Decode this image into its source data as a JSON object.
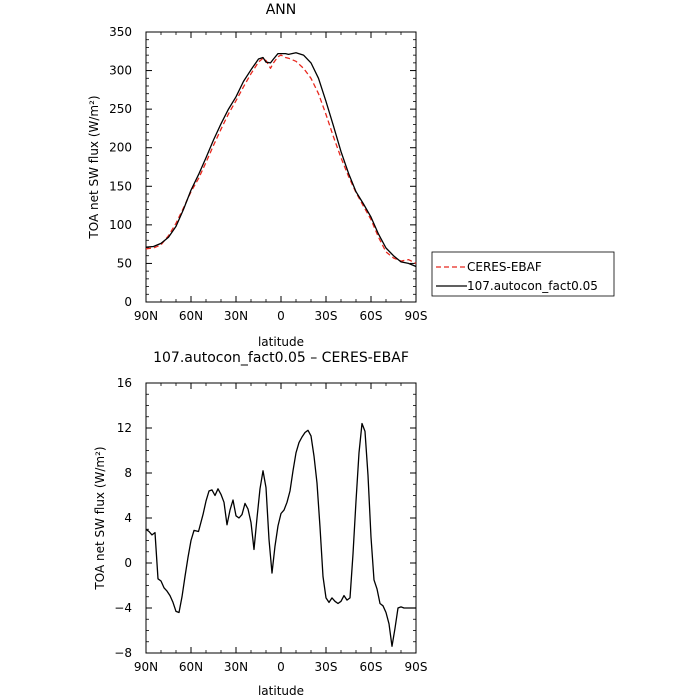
{
  "chart_data": [
    {
      "type": "line",
      "title": "ANN",
      "xlabel": "latitude",
      "ylabel": "TOA net SW flux (W/m²)",
      "x_ticks": [
        -90,
        -60,
        -30,
        0,
        30,
        60,
        90
      ],
      "x_tick_labels": [
        "90N",
        "60N",
        "30N",
        "0",
        "30S",
        "60S",
        "90S"
      ],
      "y_ticks": [
        0,
        50,
        100,
        150,
        200,
        250,
        300,
        350
      ],
      "y_tick_labels": [
        "0",
        "50",
        "100",
        "150",
        "200",
        "250",
        "300",
        "350"
      ],
      "xlim": [
        -90,
        90
      ],
      "ylim": [
        0,
        350
      ],
      "legend_position": "right",
      "series": [
        {
          "name": "CERES-EBAF",
          "color": "#e8281e",
          "dash": "dashed",
          "x": [
            -90,
            -85,
            -80,
            -75,
            -70,
            -65,
            -60,
            -55,
            -50,
            -45,
            -40,
            -35,
            -30,
            -25,
            -20,
            -15,
            -12,
            -10,
            -7,
            -5,
            -2,
            0,
            3,
            5,
            10,
            15,
            20,
            25,
            30,
            35,
            40,
            45,
            50,
            55,
            60,
            65,
            70,
            75,
            80,
            85,
            90
          ],
          "y": [
            69,
            70,
            74,
            86,
            102,
            122,
            143,
            160,
            181,
            203,
            224,
            244,
            261,
            279,
            296,
            311,
            316,
            313,
            303,
            310,
            318,
            320,
            317,
            316,
            312,
            303,
            290,
            270,
            243,
            214,
            187,
            163,
            142,
            124,
            107,
            84,
            65,
            57,
            53,
            55,
            50
          ]
        },
        {
          "name": "107.autocon_fact0.05",
          "color": "#000000",
          "dash": "solid",
          "x": [
            -90,
            -85,
            -80,
            -75,
            -70,
            -65,
            -60,
            -55,
            -50,
            -45,
            -40,
            -35,
            -30,
            -25,
            -20,
            -15,
            -12,
            -10,
            -7,
            -5,
            -2,
            0,
            3,
            5,
            10,
            15,
            20,
            25,
            30,
            35,
            40,
            45,
            50,
            55,
            60,
            65,
            70,
            75,
            80,
            85,
            90
          ],
          "y": [
            71,
            72,
            76,
            84,
            98,
            120,
            145,
            165,
            187,
            210,
            231,
            250,
            266,
            286,
            301,
            315,
            317,
            311,
            310,
            315,
            322,
            322,
            322,
            321,
            323,
            320,
            310,
            290,
            260,
            228,
            195,
            167,
            143,
            127,
            110,
            88,
            70,
            60,
            52,
            50,
            46
          ]
        }
      ]
    },
    {
      "type": "line",
      "title": "107.autocon_fact0.05 – CERES-EBAF",
      "xlabel": "latitude",
      "ylabel": "TOA net SW flux (W/m²)",
      "x_ticks": [
        -90,
        -60,
        -30,
        0,
        30,
        60,
        90
      ],
      "x_tick_labels": [
        "90N",
        "60N",
        "30N",
        "0",
        "30S",
        "60S",
        "90S"
      ],
      "y_ticks": [
        -8,
        -4,
        0,
        4,
        8,
        12,
        16
      ],
      "y_tick_labels": [
        "−8",
        "−4",
        "0",
        "4",
        "8",
        "12",
        "16"
      ],
      "xlim": [
        -90,
        90
      ],
      "ylim": [
        -8,
        16
      ],
      "series": [
        {
          "name": "",
          "color": "#000000",
          "dash": "solid",
          "x": [
            -90,
            -88,
            -86,
            -84,
            -82,
            -80,
            -78,
            -76,
            -74,
            -72,
            -70,
            -68,
            -66,
            -64,
            -62,
            -60,
            -58,
            -55,
            -52,
            -50,
            -48,
            -46,
            -44,
            -42,
            -40,
            -38,
            -36,
            -34,
            -32,
            -30,
            -28,
            -26,
            -24,
            -22,
            -20,
            -18,
            -16,
            -14,
            -12,
            -10,
            -8,
            -6,
            -4,
            -2,
            0,
            2,
            4,
            6,
            8,
            10,
            12,
            14,
            16,
            18,
            20,
            22,
            24,
            26,
            28,
            30,
            32,
            34,
            36,
            38,
            40,
            42,
            44,
            46,
            48,
            50,
            52,
            54,
            56,
            58,
            60,
            62,
            64,
            66,
            68,
            70,
            72,
            74,
            76,
            78,
            80,
            82,
            84,
            86,
            88,
            90
          ],
          "y": [
            3,
            2.8,
            2.5,
            2.7,
            -1.4,
            -1.6,
            -2.2,
            -2.5,
            -2.9,
            -3.5,
            -4.3,
            -4.4,
            -3,
            -1.2,
            0.5,
            2,
            2.9,
            2.8,
            4.3,
            5.5,
            6.4,
            6.5,
            6,
            6.6,
            6.1,
            5.4,
            3.4,
            4.7,
            5.6,
            4.2,
            4,
            4.3,
            5.3,
            4.8,
            3.6,
            1.2,
            4,
            6.6,
            8.2,
            6.7,
            2.1,
            -0.9,
            1.5,
            3.3,
            4.4,
            4.7,
            5.4,
            6.4,
            8.2,
            9.8,
            10.7,
            11.2,
            11.6,
            11.8,
            11.3,
            9.5,
            7.1,
            3.2,
            -1.2,
            -3.1,
            -3.5,
            -3.1,
            -3.4,
            -3.6,
            -3.4,
            -2.9,
            -3.3,
            -3.1,
            0.8,
            5.5,
            9.8,
            12.4,
            11.7,
            7.8,
            2.3,
            -1.5,
            -2.3,
            -3.6,
            -3.8,
            -4.4,
            -5.4,
            -7.4,
            -5.8,
            -4,
            -3.9,
            -4,
            -4,
            -4,
            -4,
            -4
          ]
        }
      ]
    }
  ]
}
